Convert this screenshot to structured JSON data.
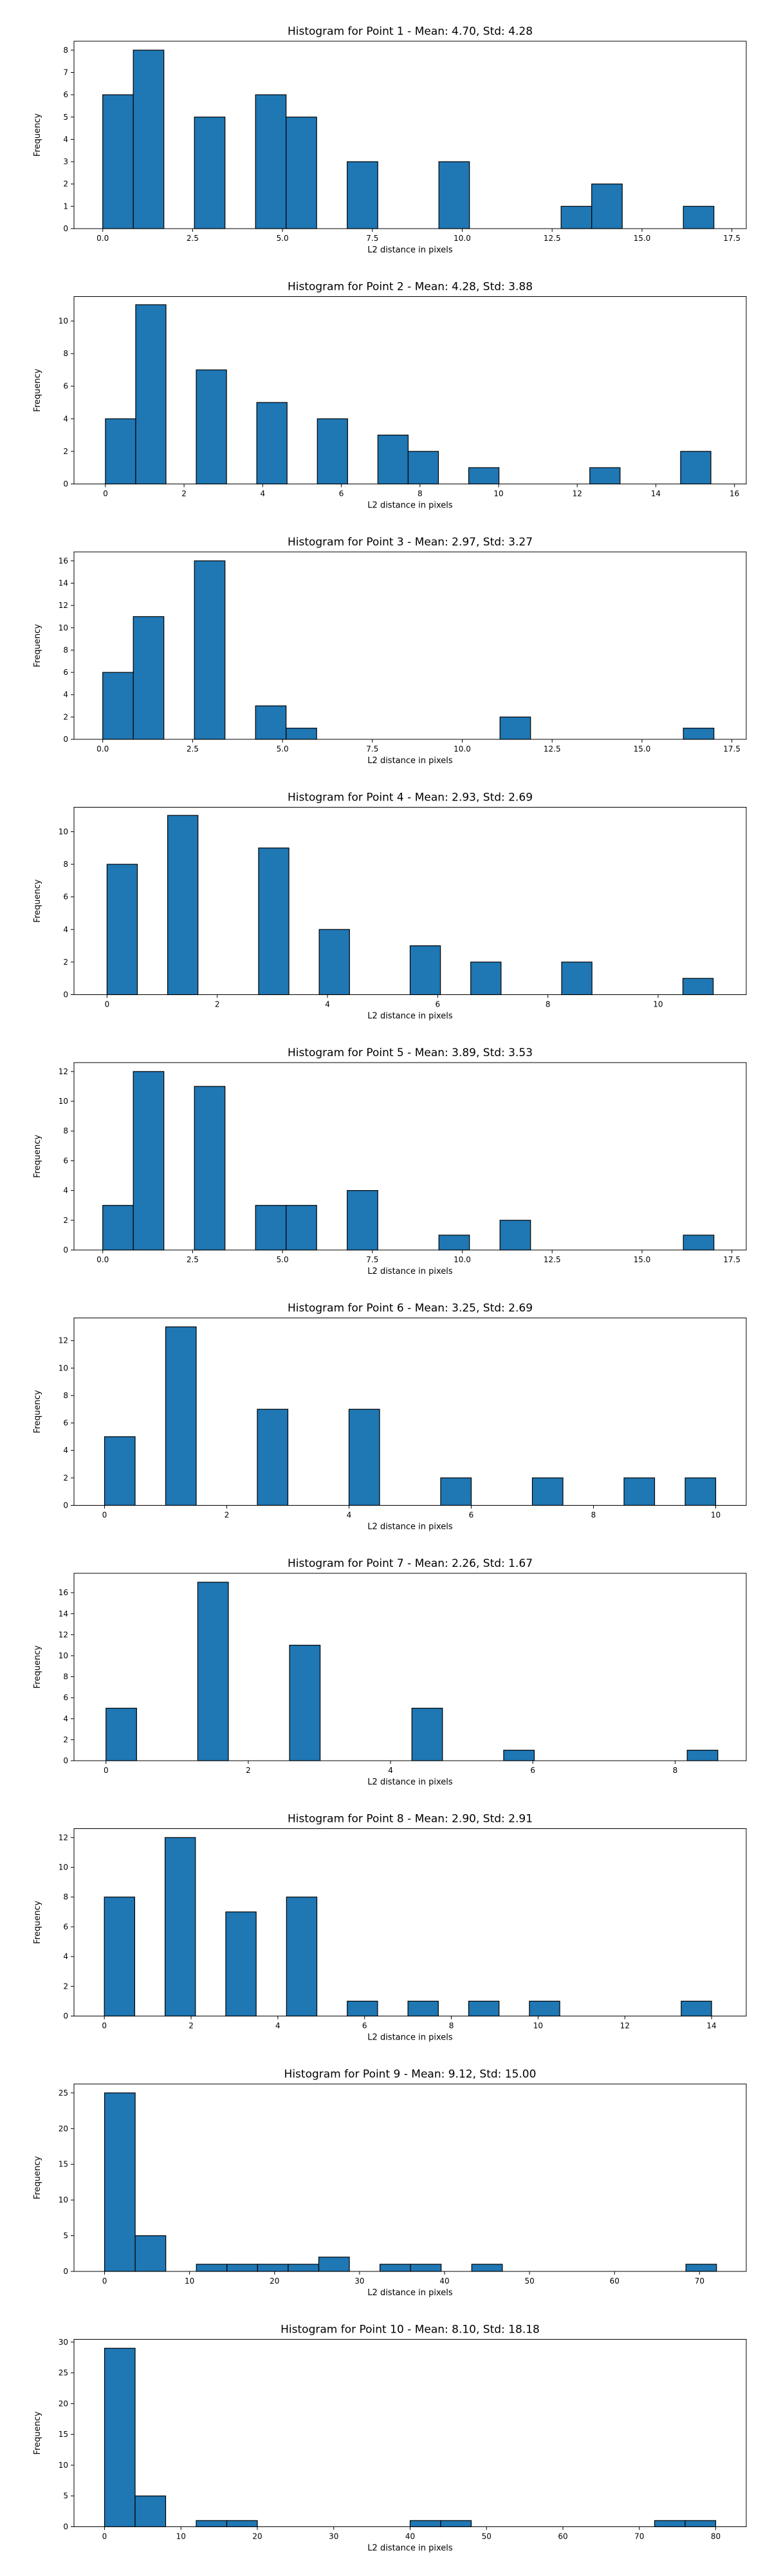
{
  "colors": {
    "bar_fill": "#1f77b4",
    "bar_edge": "#000000"
  },
  "chart_data": [
    {
      "type": "bar",
      "title": "Histogram for Point 1 - Mean: 4.70, Std: 4.28",
      "xlabel": "L2 distance in pixels",
      "ylabel": "Frequency",
      "xlim": [
        -0.8,
        17.9
      ],
      "ylim": [
        0,
        8.4
      ],
      "xticks": [
        "0.0",
        "2.5",
        "5.0",
        "7.5",
        "10.0",
        "12.5",
        "15.0",
        "17.5"
      ],
      "yticks": [
        "0",
        "1",
        "2",
        "3",
        "4",
        "5",
        "6",
        "7",
        "8"
      ],
      "bins": [
        {
          "x0": 0.0,
          "x1": 0.85,
          "count": 6
        },
        {
          "x0": 0.85,
          "x1": 1.7,
          "count": 8
        },
        {
          "x0": 2.55,
          "x1": 3.4,
          "count": 5
        },
        {
          "x0": 4.25,
          "x1": 5.1,
          "count": 6
        },
        {
          "x0": 5.1,
          "x1": 5.95,
          "count": 5
        },
        {
          "x0": 6.8,
          "x1": 7.65,
          "count": 3
        },
        {
          "x0": 9.35,
          "x1": 10.2,
          "count": 3
        },
        {
          "x0": 12.75,
          "x1": 13.6,
          "count": 1
        },
        {
          "x0": 13.6,
          "x1": 14.45,
          "count": 2
        },
        {
          "x0": 16.15,
          "x1": 17.0,
          "count": 1
        }
      ]
    },
    {
      "type": "bar",
      "title": "Histogram for Point 2 - Mean: 4.28, Std: 3.88",
      "xlabel": "L2 distance in pixels",
      "ylabel": "Frequency",
      "xlim": [
        -0.8,
        16.3
      ],
      "ylim": [
        0,
        11.5
      ],
      "xticks": [
        "0",
        "2",
        "4",
        "6",
        "8",
        "10",
        "12",
        "14",
        "16"
      ],
      "yticks": [
        "0",
        "2",
        "4",
        "6",
        "8",
        "10"
      ],
      "bins": [
        {
          "x0": 0.0,
          "x1": 0.77,
          "count": 4
        },
        {
          "x0": 0.77,
          "x1": 1.54,
          "count": 11
        },
        {
          "x0": 2.31,
          "x1": 3.08,
          "count": 7
        },
        {
          "x0": 3.85,
          "x1": 4.62,
          "count": 5
        },
        {
          "x0": 5.39,
          "x1": 6.16,
          "count": 4
        },
        {
          "x0": 6.93,
          "x1": 7.7,
          "count": 3
        },
        {
          "x0": 7.7,
          "x1": 8.47,
          "count": 2
        },
        {
          "x0": 9.24,
          "x1": 10.01,
          "count": 1
        },
        {
          "x0": 12.32,
          "x1": 13.09,
          "count": 1
        },
        {
          "x0": 14.63,
          "x1": 15.4,
          "count": 2
        }
      ]
    },
    {
      "type": "bar",
      "title": "Histogram for Point 3 - Mean: 2.97, Std: 3.27",
      "xlabel": "L2 distance in pixels",
      "ylabel": "Frequency",
      "xlim": [
        -0.8,
        17.9
      ],
      "ylim": [
        0,
        16.8
      ],
      "xticks": [
        "0.0",
        "2.5",
        "5.0",
        "7.5",
        "10.0",
        "12.5",
        "15.0",
        "17.5"
      ],
      "yticks": [
        "0",
        "2",
        "4",
        "6",
        "8",
        "10",
        "12",
        "14",
        "16"
      ],
      "bins": [
        {
          "x0": 0.0,
          "x1": 0.85,
          "count": 6
        },
        {
          "x0": 0.85,
          "x1": 1.7,
          "count": 11
        },
        {
          "x0": 2.55,
          "x1": 3.4,
          "count": 16
        },
        {
          "x0": 4.25,
          "x1": 5.1,
          "count": 3
        },
        {
          "x0": 5.1,
          "x1": 5.95,
          "count": 1
        },
        {
          "x0": 11.05,
          "x1": 11.9,
          "count": 2
        },
        {
          "x0": 16.15,
          "x1": 17.0,
          "count": 1
        }
      ]
    },
    {
      "type": "bar",
      "title": "Histogram for Point 4 - Mean: 2.93, Std: 2.69",
      "xlabel": "L2 distance in pixels",
      "ylabel": "Frequency",
      "xlim": [
        -0.6,
        11.6
      ],
      "ylim": [
        0,
        11.5
      ],
      "xticks": [
        "0",
        "2",
        "4",
        "6",
        "8",
        "10"
      ],
      "yticks": [
        "0",
        "2",
        "4",
        "6",
        "8",
        "10"
      ],
      "bins": [
        {
          "x0": 0.0,
          "x1": 0.55,
          "count": 8
        },
        {
          "x0": 1.1,
          "x1": 1.65,
          "count": 11
        },
        {
          "x0": 2.75,
          "x1": 3.3,
          "count": 9
        },
        {
          "x0": 3.85,
          "x1": 4.4,
          "count": 4
        },
        {
          "x0": 5.5,
          "x1": 6.05,
          "count": 3
        },
        {
          "x0": 6.6,
          "x1": 7.15,
          "count": 2
        },
        {
          "x0": 8.25,
          "x1": 8.8,
          "count": 2
        },
        {
          "x0": 10.45,
          "x1": 11.0,
          "count": 1
        }
      ]
    },
    {
      "type": "bar",
      "title": "Histogram for Point 5 - Mean: 3.89, Std: 3.53",
      "xlabel": "L2 distance in pixels",
      "ylabel": "Frequency",
      "xlim": [
        -0.8,
        17.9
      ],
      "ylim": [
        0,
        12.6
      ],
      "xticks": [
        "0.0",
        "2.5",
        "5.0",
        "7.5",
        "10.0",
        "12.5",
        "15.0",
        "17.5"
      ],
      "yticks": [
        "0",
        "2",
        "4",
        "6",
        "8",
        "10",
        "12"
      ],
      "bins": [
        {
          "x0": 0.0,
          "x1": 0.85,
          "count": 3
        },
        {
          "x0": 0.85,
          "x1": 1.7,
          "count": 12
        },
        {
          "x0": 2.55,
          "x1": 3.4,
          "count": 11
        },
        {
          "x0": 4.25,
          "x1": 5.1,
          "count": 3
        },
        {
          "x0": 5.1,
          "x1": 5.95,
          "count": 3
        },
        {
          "x0": 6.8,
          "x1": 7.65,
          "count": 4
        },
        {
          "x0": 9.35,
          "x1": 10.2,
          "count": 1
        },
        {
          "x0": 11.05,
          "x1": 11.9,
          "count": 2
        },
        {
          "x0": 16.15,
          "x1": 17.0,
          "count": 1
        }
      ]
    },
    {
      "type": "bar",
      "title": "Histogram for Point 6 - Mean: 3.25, Std: 2.69",
      "xlabel": "L2 distance in pixels",
      "ylabel": "Frequency",
      "xlim": [
        -0.5,
        10.5
      ],
      "ylim": [
        0,
        13.65
      ],
      "xticks": [
        "0",
        "2",
        "4",
        "6",
        "8",
        "10"
      ],
      "yticks": [
        "0",
        "2",
        "4",
        "6",
        "8",
        "10",
        "12"
      ],
      "bins": [
        {
          "x0": 0.0,
          "x1": 0.5,
          "count": 5
        },
        {
          "x0": 1.0,
          "x1": 1.5,
          "count": 13
        },
        {
          "x0": 2.5,
          "x1": 3.0,
          "count": 7
        },
        {
          "x0": 4.0,
          "x1": 4.5,
          "count": 7
        },
        {
          "x0": 5.5,
          "x1": 6.0,
          "count": 2
        },
        {
          "x0": 7.0,
          "x1": 7.5,
          "count": 2
        },
        {
          "x0": 8.5,
          "x1": 9.0,
          "count": 2
        },
        {
          "x0": 9.5,
          "x1": 10.0,
          "count": 2
        }
      ]
    },
    {
      "type": "bar",
      "title": "Histogram for Point 7 - Mean: 2.26, Std: 1.67",
      "xlabel": "L2 distance in pixels",
      "ylabel": "Frequency",
      "xlim": [
        -0.45,
        9.0
      ],
      "ylim": [
        0,
        17.85
      ],
      "xticks": [
        "0",
        "2",
        "4",
        "6",
        "8"
      ],
      "yticks": [
        "0",
        "2",
        "4",
        "6",
        "8",
        "10",
        "12",
        "14",
        "16"
      ],
      "bins": [
        {
          "x0": 0.0,
          "x1": 0.43,
          "count": 5
        },
        {
          "x0": 1.29,
          "x1": 1.72,
          "count": 17
        },
        {
          "x0": 2.58,
          "x1": 3.01,
          "count": 11
        },
        {
          "x0": 4.3,
          "x1": 4.73,
          "count": 5
        },
        {
          "x0": 5.59,
          "x1": 6.02,
          "count": 1
        },
        {
          "x0": 8.17,
          "x1": 8.6,
          "count": 1
        }
      ]
    },
    {
      "type": "bar",
      "title": "Histogram for Point 8 - Mean: 2.90, Std: 2.91",
      "xlabel": "L2 distance in pixels",
      "ylabel": "Frequency",
      "xlim": [
        -0.7,
        14.8
      ],
      "ylim": [
        0,
        12.6
      ],
      "xticks": [
        "0",
        "2",
        "4",
        "6",
        "8",
        "10",
        "12",
        "14"
      ],
      "yticks": [
        "0",
        "2",
        "4",
        "6",
        "8",
        "10",
        "12"
      ],
      "bins": [
        {
          "x0": 0.0,
          "x1": 0.7,
          "count": 8
        },
        {
          "x0": 1.4,
          "x1": 2.1,
          "count": 12
        },
        {
          "x0": 2.8,
          "x1": 3.5,
          "count": 7
        },
        {
          "x0": 4.2,
          "x1": 4.9,
          "count": 8
        },
        {
          "x0": 5.6,
          "x1": 6.3,
          "count": 1
        },
        {
          "x0": 7.0,
          "x1": 7.7,
          "count": 1
        },
        {
          "x0": 8.4,
          "x1": 9.1,
          "count": 1
        },
        {
          "x0": 9.8,
          "x1": 10.5,
          "count": 1
        },
        {
          "x0": 13.3,
          "x1": 14.0,
          "count": 1
        }
      ]
    },
    {
      "type": "bar",
      "title": "Histogram for Point 9 - Mean: 9.12, Std: 15.00",
      "xlabel": "L2 distance in pixels",
      "ylabel": "Frequency",
      "xlim": [
        -3.6,
        75.5
      ],
      "ylim": [
        0,
        26.25
      ],
      "xticks": [
        "0",
        "10",
        "20",
        "30",
        "40",
        "50",
        "60",
        "70"
      ],
      "yticks": [
        "0",
        "5",
        "10",
        "15",
        "20",
        "25"
      ],
      "bins": [
        {
          "x0": 0.0,
          "x1": 3.6,
          "count": 25
        },
        {
          "x0": 3.6,
          "x1": 7.2,
          "count": 5
        },
        {
          "x0": 10.8,
          "x1": 14.4,
          "count": 1
        },
        {
          "x0": 14.4,
          "x1": 18.0,
          "count": 1
        },
        {
          "x0": 18.0,
          "x1": 21.6,
          "count": 1
        },
        {
          "x0": 21.6,
          "x1": 25.2,
          "count": 1
        },
        {
          "x0": 25.2,
          "x1": 28.8,
          "count": 2
        },
        {
          "x0": 32.4,
          "x1": 36.0,
          "count": 1
        },
        {
          "x0": 36.0,
          "x1": 39.6,
          "count": 1
        },
        {
          "x0": 43.2,
          "x1": 46.8,
          "count": 1
        },
        {
          "x0": 68.4,
          "x1": 72.0,
          "count": 1
        }
      ]
    },
    {
      "type": "bar",
      "title": "Histogram for Point 10 - Mean: 8.10, Std: 18.18",
      "xlabel": "L2 distance in pixels",
      "ylabel": "Frequency",
      "xlim": [
        -4.0,
        84.0
      ],
      "ylim": [
        0,
        30.45
      ],
      "xticks": [
        "0",
        "10",
        "20",
        "30",
        "40",
        "50",
        "60",
        "70",
        "80"
      ],
      "yticks": [
        "0",
        "5",
        "10",
        "15",
        "20",
        "25",
        "30"
      ],
      "bins": [
        {
          "x0": 0.0,
          "x1": 4.0,
          "count": 29
        },
        {
          "x0": 4.0,
          "x1": 8.0,
          "count": 5
        },
        {
          "x0": 12.0,
          "x1": 16.0,
          "count": 1
        },
        {
          "x0": 16.0,
          "x1": 20.0,
          "count": 1
        },
        {
          "x0": 40.0,
          "x1": 44.0,
          "count": 1
        },
        {
          "x0": 44.0,
          "x1": 48.0,
          "count": 1
        },
        {
          "x0": 72.0,
          "x1": 76.0,
          "count": 1
        },
        {
          "x0": 76.0,
          "x1": 80.0,
          "count": 1
        }
      ]
    }
  ]
}
